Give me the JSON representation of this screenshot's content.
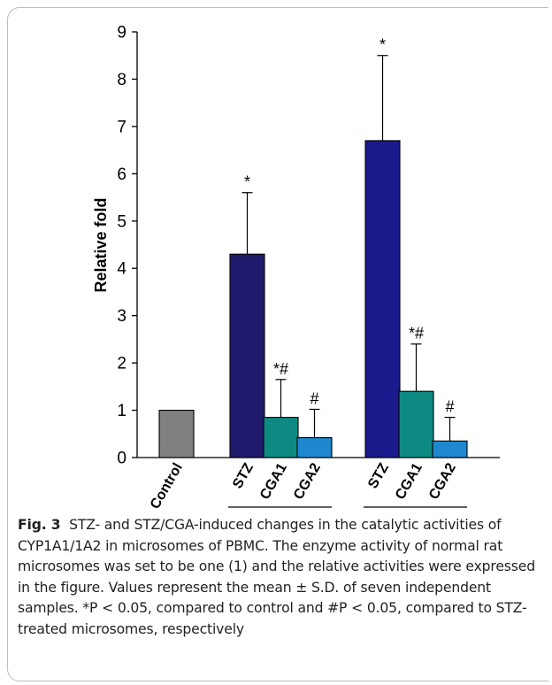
{
  "chart_data": {
    "type": "bar",
    "ylabel": "Relative fold",
    "ylim": [
      0,
      9
    ],
    "yticks": [
      "0",
      "1",
      "2",
      "3",
      "4",
      "5",
      "6",
      "7",
      "8",
      "9"
    ],
    "grid": false,
    "bars": [
      {
        "category": "Control",
        "group": "",
        "value": 1.0,
        "error": 0,
        "sig": "",
        "color": "#808080"
      },
      {
        "category": "STZ",
        "group": "CYP1A1",
        "value": 4.3,
        "error": 1.3,
        "sig": "*",
        "color": "#1f1a6b"
      },
      {
        "category": "CGA1",
        "group": "CYP1A1",
        "value": 0.85,
        "error": 0.8,
        "sig": "*#",
        "color": "#0e8a82"
      },
      {
        "category": "CGA2",
        "group": "CYP1A1",
        "value": 0.42,
        "error": 0.6,
        "sig": "#",
        "color": "#1e88cf"
      },
      {
        "category": "STZ",
        "group": "CYP1A2",
        "value": 6.7,
        "error": 1.8,
        "sig": "*",
        "color": "#1a1a8c"
      },
      {
        "category": "CGA1",
        "group": "CYP1A2",
        "value": 1.4,
        "error": 1.0,
        "sig": "*#",
        "color": "#0e8a82"
      },
      {
        "category": "CGA2",
        "group": "CYP1A2",
        "value": 0.35,
        "error": 0.5,
        "sig": "#",
        "color": "#1e88cf"
      }
    ],
    "groups": [
      "CYP1A1",
      "CYP1A2"
    ]
  },
  "caption": {
    "label": "Fig. 3",
    "text": "STZ- and STZ/CGA-induced changes in the catalytic activities of CYP1A1/1A2 in microsomes of PBMC. The enzyme activity of normal rat microsomes was set to be one (1) and the relative activities were expressed in the figure. Values represent the mean ± S.D. of seven independent samples. *P < 0.05, compared to control and #P < 0.05, compared to STZ-treated microsomes, respectively"
  }
}
